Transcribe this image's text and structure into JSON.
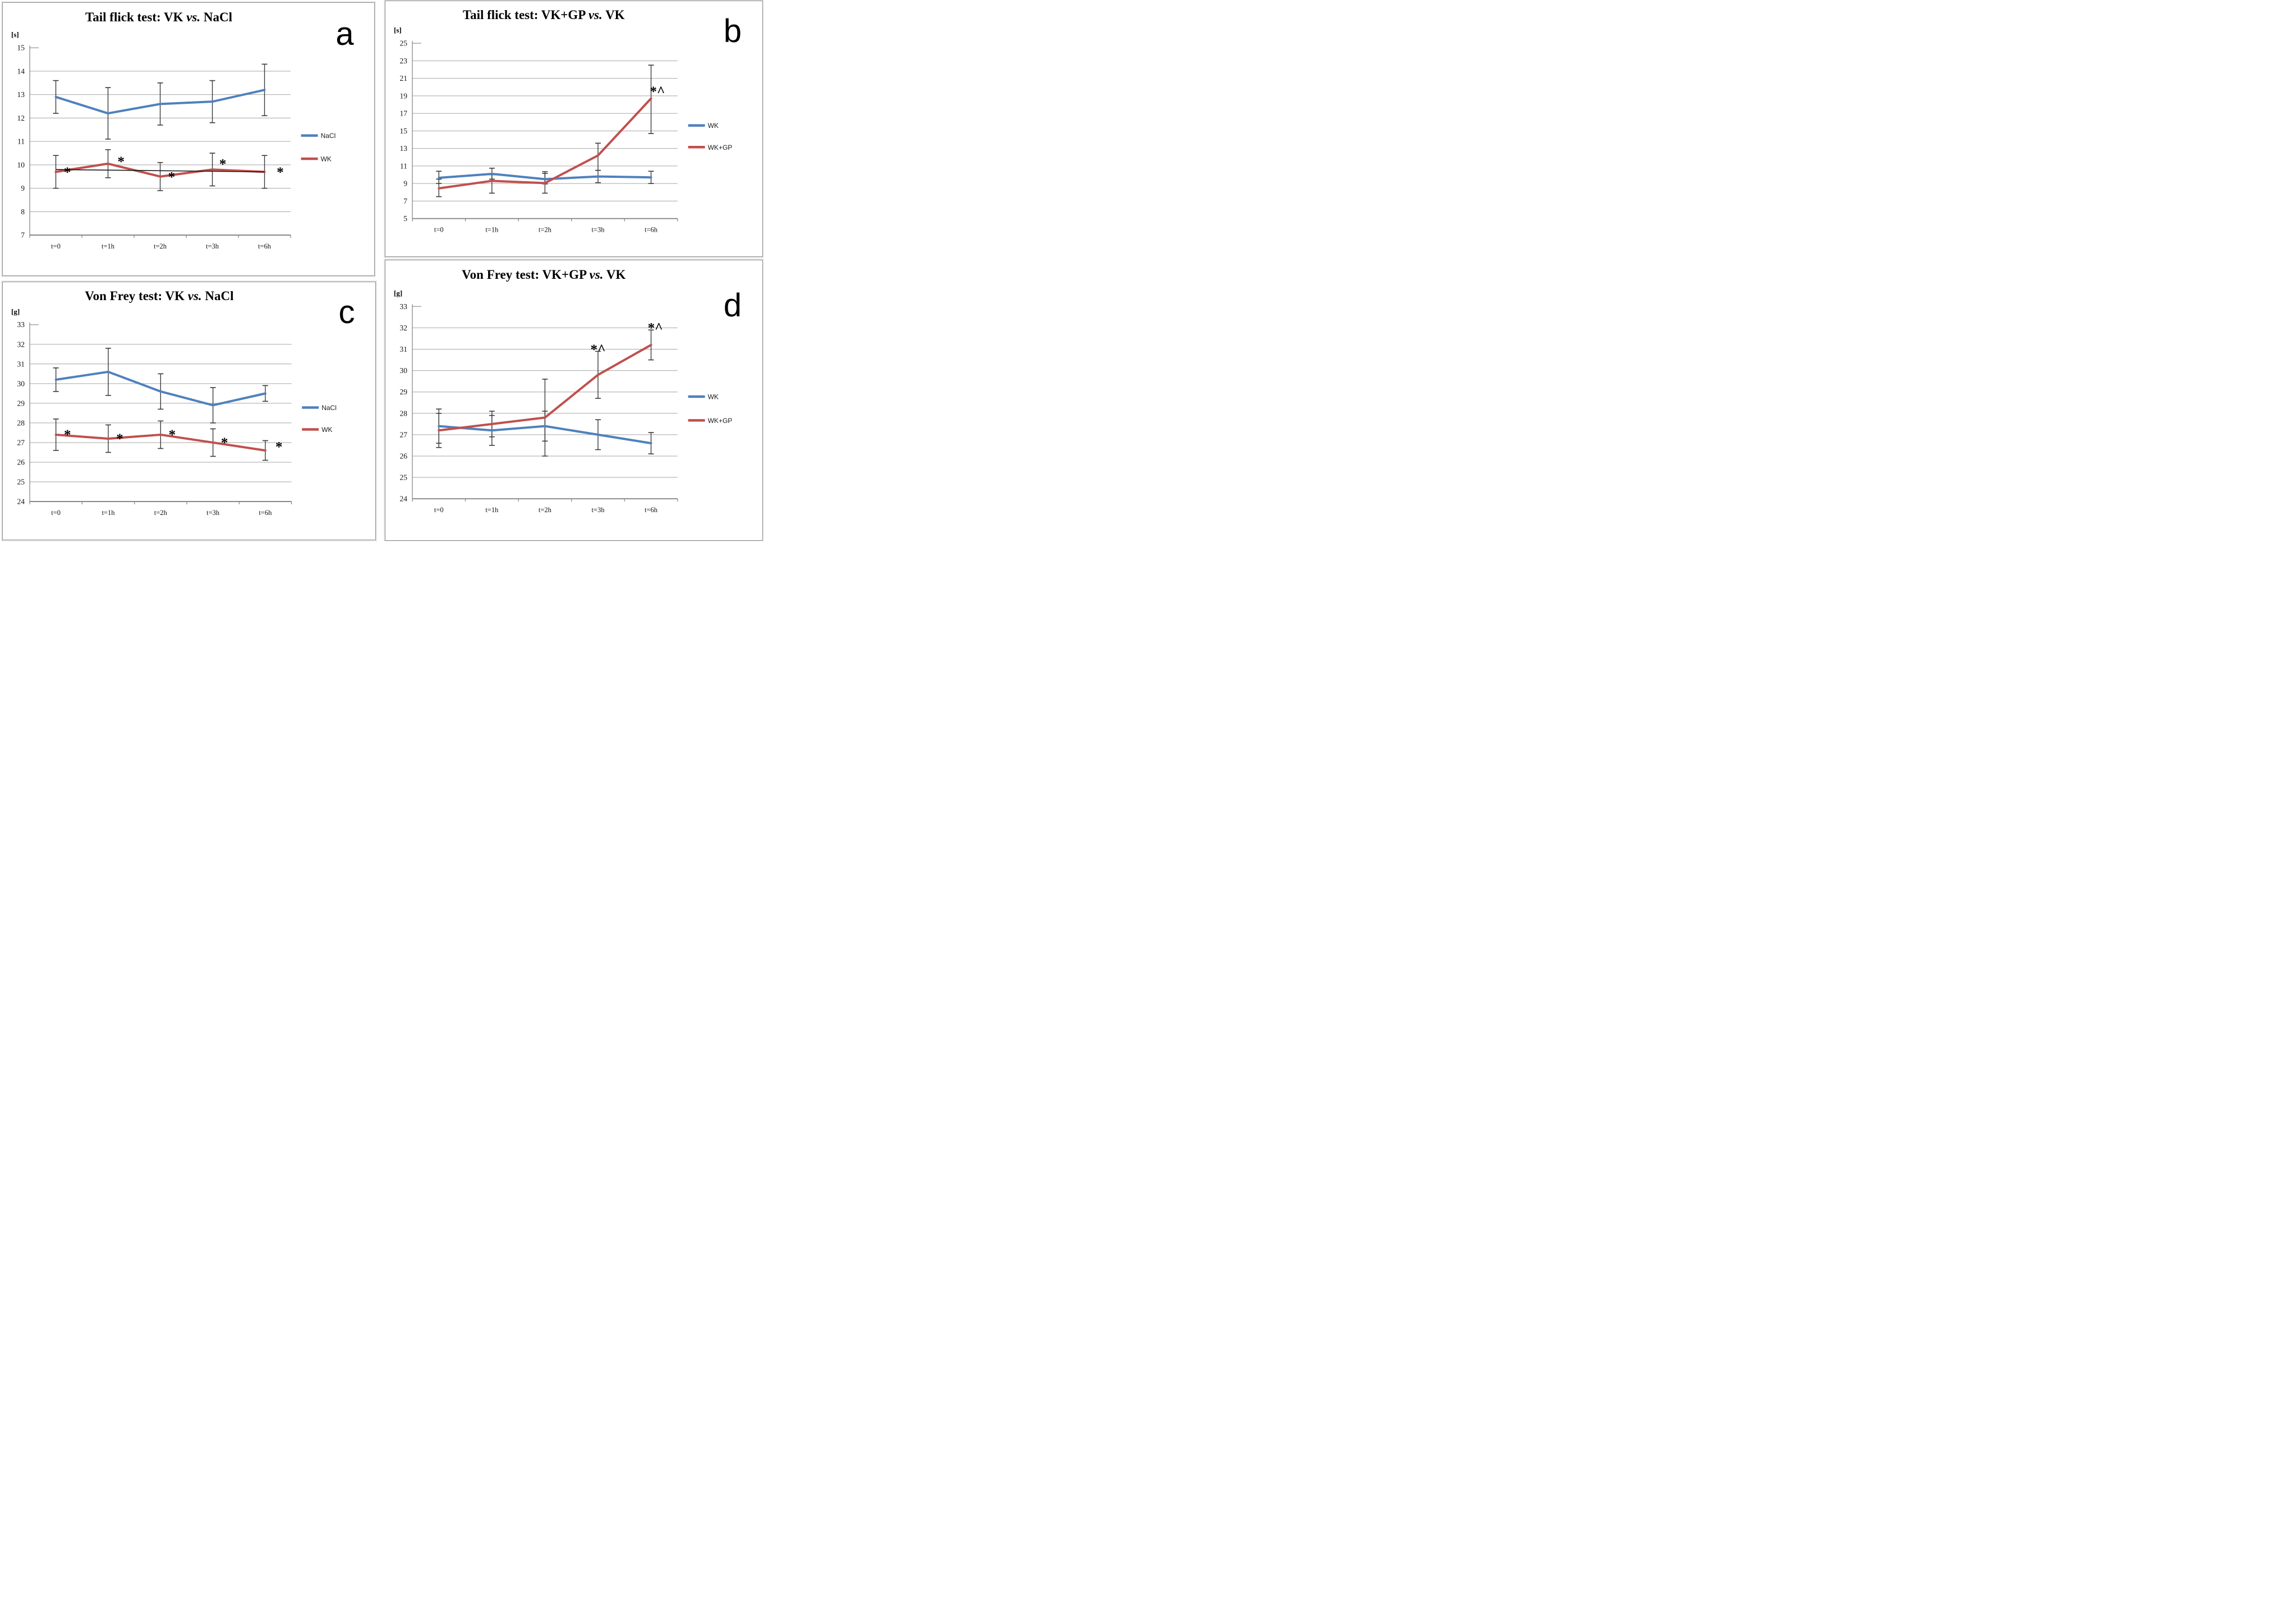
{
  "colors": {
    "blue": "#4F81BD",
    "red": "#C0504D",
    "grid": "#A6A6A6",
    "axis": "#808080",
    "error_bar": "#3a3a3a",
    "ref_line": "#1a1a1a",
    "background": "#ffffff"
  },
  "chart_data": [
    {
      "id": "a",
      "type": "line",
      "letter": "a",
      "unit": "[s]",
      "title": {
        "pre": "Tail flick test: VK ",
        "vs": "vs.",
        "post": " NaCl"
      },
      "ylim": [
        7,
        15
      ],
      "y_step": 1,
      "grid": true,
      "legend_position": "right",
      "categories": [
        "t=0",
        "t=1h",
        "t=2h",
        "t=3h",
        "t=6h"
      ],
      "legend": [
        {
          "label": "NaCl",
          "color": "blue"
        },
        {
          "label": "WK",
          "color": "red"
        }
      ],
      "series": [
        {
          "name": "NaCl",
          "color": "blue",
          "values": [
            12.9,
            12.2,
            12.6,
            12.7,
            13.2
          ],
          "err_low": [
            12.2,
            11.1,
            11.7,
            11.8,
            12.1
          ],
          "err_high": [
            13.6,
            13.3,
            13.5,
            13.6,
            14.3
          ]
        },
        {
          "name": "WK",
          "color": "red",
          "values": [
            9.7,
            10.05,
            9.5,
            9.8,
            9.7
          ],
          "err_low": [
            9.0,
            9.45,
            8.9,
            9.1,
            9.0
          ],
          "err_high": [
            10.4,
            10.65,
            10.1,
            10.5,
            10.4
          ]
        }
      ],
      "ref_line": {
        "x1": 0,
        "y1": 9.8,
        "x2": 4,
        "y2": 9.7
      },
      "annotations": [
        {
          "x": 0.22,
          "y": 9.83,
          "text": "*"
        },
        {
          "x": 1.25,
          "y": 10.28,
          "text": "*"
        },
        {
          "x": 2.22,
          "y": 9.62,
          "text": "*"
        },
        {
          "x": 3.2,
          "y": 10.18,
          "text": "*"
        },
        {
          "x": 4.3,
          "y": 9.83,
          "text": "*"
        }
      ]
    },
    {
      "id": "b",
      "type": "line",
      "letter": "b",
      "unit": "[s]",
      "title": {
        "pre": "Tail flick test: VK+GP ",
        "vs": "vs.",
        "post": " VK"
      },
      "ylim": [
        5,
        25
      ],
      "y_step": 2,
      "grid": true,
      "legend_position": "right",
      "categories": [
        "t=0",
        "t=1h",
        "t=2h",
        "t=3h",
        "t=6h"
      ],
      "legend": [
        {
          "label": "WK",
          "color": "blue"
        },
        {
          "label": "WK+GP",
          "color": "red"
        }
      ],
      "series": [
        {
          "name": "WK",
          "color": "blue",
          "values": [
            9.65,
            10.1,
            9.5,
            9.8,
            9.7
          ],
          "err_low": [
            9.0,
            9.5,
            8.95,
            9.1,
            9.0
          ],
          "err_high": [
            10.4,
            10.75,
            10.35,
            10.5,
            10.4
          ]
        },
        {
          "name": "WK+GP",
          "color": "red",
          "values": [
            8.45,
            9.3,
            9.05,
            12.2,
            18.7
          ],
          "err_low": [
            7.5,
            7.9,
            7.9,
            10.5,
            14.7
          ],
          "err_high": [
            9.5,
            10.0,
            10.15,
            13.6,
            22.5
          ]
        }
      ],
      "annotations": [
        {
          "x": 4.12,
          "y": 19.9,
          "text": "*^"
        }
      ]
    },
    {
      "id": "c",
      "type": "line",
      "letter": "c",
      "unit": "[g]",
      "title": {
        "pre": "Von Frey test: VK ",
        "vs": "vs.",
        "post": " NaCl"
      },
      "ylim": [
        24,
        33
      ],
      "y_step": 1,
      "grid": true,
      "legend_position": "right",
      "categories": [
        "t=0",
        "t=1h",
        "t=2h",
        "t=3h",
        "t=6h"
      ],
      "legend": [
        {
          "label": "NaCl",
          "color": "blue"
        },
        {
          "label": "WK",
          "color": "red"
        }
      ],
      "series": [
        {
          "name": "NaCl",
          "color": "blue",
          "values": [
            30.2,
            30.6,
            29.6,
            28.9,
            29.5
          ],
          "err_low": [
            29.6,
            29.4,
            28.7,
            28.0,
            29.1
          ],
          "err_high": [
            30.8,
            31.8,
            30.5,
            29.8,
            29.9
          ]
        },
        {
          "name": "WK",
          "color": "red",
          "values": [
            27.4,
            27.2,
            27.4,
            27.0,
            26.6
          ],
          "err_low": [
            26.6,
            26.5,
            26.7,
            26.3,
            26.1
          ],
          "err_high": [
            28.2,
            27.9,
            28.1,
            27.7,
            27.1
          ]
        }
      ],
      "annotations": [
        {
          "x": 0.22,
          "y": 27.57,
          "text": "*"
        },
        {
          "x": 1.22,
          "y": 27.37,
          "text": "*"
        },
        {
          "x": 2.22,
          "y": 27.57,
          "text": "*"
        },
        {
          "x": 3.22,
          "y": 27.17,
          "text": "*"
        },
        {
          "x": 4.26,
          "y": 26.95,
          "text": "*"
        }
      ]
    },
    {
      "id": "d",
      "type": "line",
      "letter": "d",
      "unit": "[g]",
      "title": {
        "pre": "Von Frey test: VK+GP ",
        "vs": "vs.",
        "post": " VK"
      },
      "ylim": [
        24,
        33
      ],
      "y_step": 1,
      "grid": true,
      "legend_position": "right",
      "categories": [
        "t=0",
        "t=1h",
        "t=2h",
        "t=3h",
        "t=6h"
      ],
      "legend": [
        {
          "label": "WK",
          "color": "blue"
        },
        {
          "label": "WK+GP",
          "color": "red"
        }
      ],
      "series": [
        {
          "name": "WK",
          "color": "blue",
          "values": [
            27.4,
            27.2,
            27.4,
            27.0,
            26.6
          ],
          "err_low": [
            26.4,
            26.5,
            26.7,
            26.3,
            26.1
          ],
          "err_high": [
            28.2,
            28.1,
            28.1,
            27.7,
            27.1
          ]
        },
        {
          "name": "WK+GP",
          "color": "red",
          "values": [
            27.2,
            27.5,
            27.8,
            29.8,
            31.2
          ],
          "err_low": [
            26.6,
            26.9,
            26.0,
            28.7,
            30.5
          ],
          "err_high": [
            28.0,
            27.9,
            29.6,
            30.9,
            31.9
          ]
        }
      ],
      "annotations": [
        {
          "x": 3.0,
          "y": 31.15,
          "text": "*^"
        },
        {
          "x": 4.08,
          "y": 32.15,
          "text": "*^"
        }
      ]
    }
  ]
}
